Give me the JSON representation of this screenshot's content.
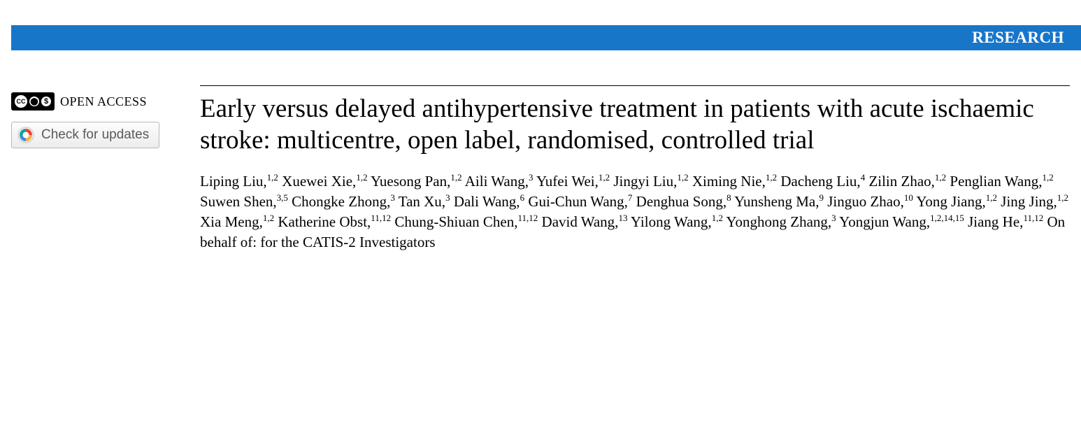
{
  "banner": {
    "label": "RESEARCH",
    "bg_color": "#1876c9",
    "text_color": "#ffffff"
  },
  "sidebar": {
    "open_access_label": "OPEN ACCESS",
    "cc_glyphs": [
      "cc",
      "BY",
      "NC"
    ],
    "updates_label": "Check for updates"
  },
  "article": {
    "title": "Early versus delayed antihypertensive treatment in patients with acute ischaemic stroke: multicentre, open label, randomised, controlled trial",
    "authors": [
      {
        "name": "Liping Liu",
        "affil": "1,2"
      },
      {
        "name": "Xuewei Xie",
        "affil": "1,2"
      },
      {
        "name": "Yuesong Pan",
        "affil": "1,2"
      },
      {
        "name": "Aili Wang",
        "affil": "3"
      },
      {
        "name": "Yufei Wei",
        "affil": "1,2"
      },
      {
        "name": "Jingyi Liu",
        "affil": "1,2"
      },
      {
        "name": "Ximing Nie",
        "affil": "1,2"
      },
      {
        "name": "Dacheng Liu",
        "affil": "4"
      },
      {
        "name": "Zilin Zhao",
        "affil": "1,2"
      },
      {
        "name": "Penglian Wang",
        "affil": "1,2"
      },
      {
        "name": "Suwen Shen",
        "affil": "3,5"
      },
      {
        "name": "Chongke Zhong",
        "affil": "3"
      },
      {
        "name": "Tan Xu",
        "affil": "3"
      },
      {
        "name": "Dali Wang",
        "affil": "6"
      },
      {
        "name": "Gui-Chun Wang",
        "affil": "7"
      },
      {
        "name": "Denghua Song",
        "affil": "8"
      },
      {
        "name": "Yunsheng Ma",
        "affil": "9"
      },
      {
        "name": "Jinguo Zhao",
        "affil": "10"
      },
      {
        "name": "Yong Jiang",
        "affil": "1,2"
      },
      {
        "name": "Jing Jing",
        "affil": "1,2"
      },
      {
        "name": "Xia Meng",
        "affil": "1,2"
      },
      {
        "name": "Katherine Obst",
        "affil": "11,12"
      },
      {
        "name": "Chung-Shiuan Chen",
        "affil": "11,12"
      },
      {
        "name": "David Wang",
        "affil": "13"
      },
      {
        "name": "Yilong Wang",
        "affil": "1,2"
      },
      {
        "name": "Yonghong Zhang",
        "affil": "3"
      },
      {
        "name": "Yongjun Wang",
        "affil": "1,2,14,15"
      },
      {
        "name": "Jiang He",
        "affil": "11,12"
      }
    ],
    "behalf_text": "On behalf of: for the CATIS-2 Investigators"
  }
}
